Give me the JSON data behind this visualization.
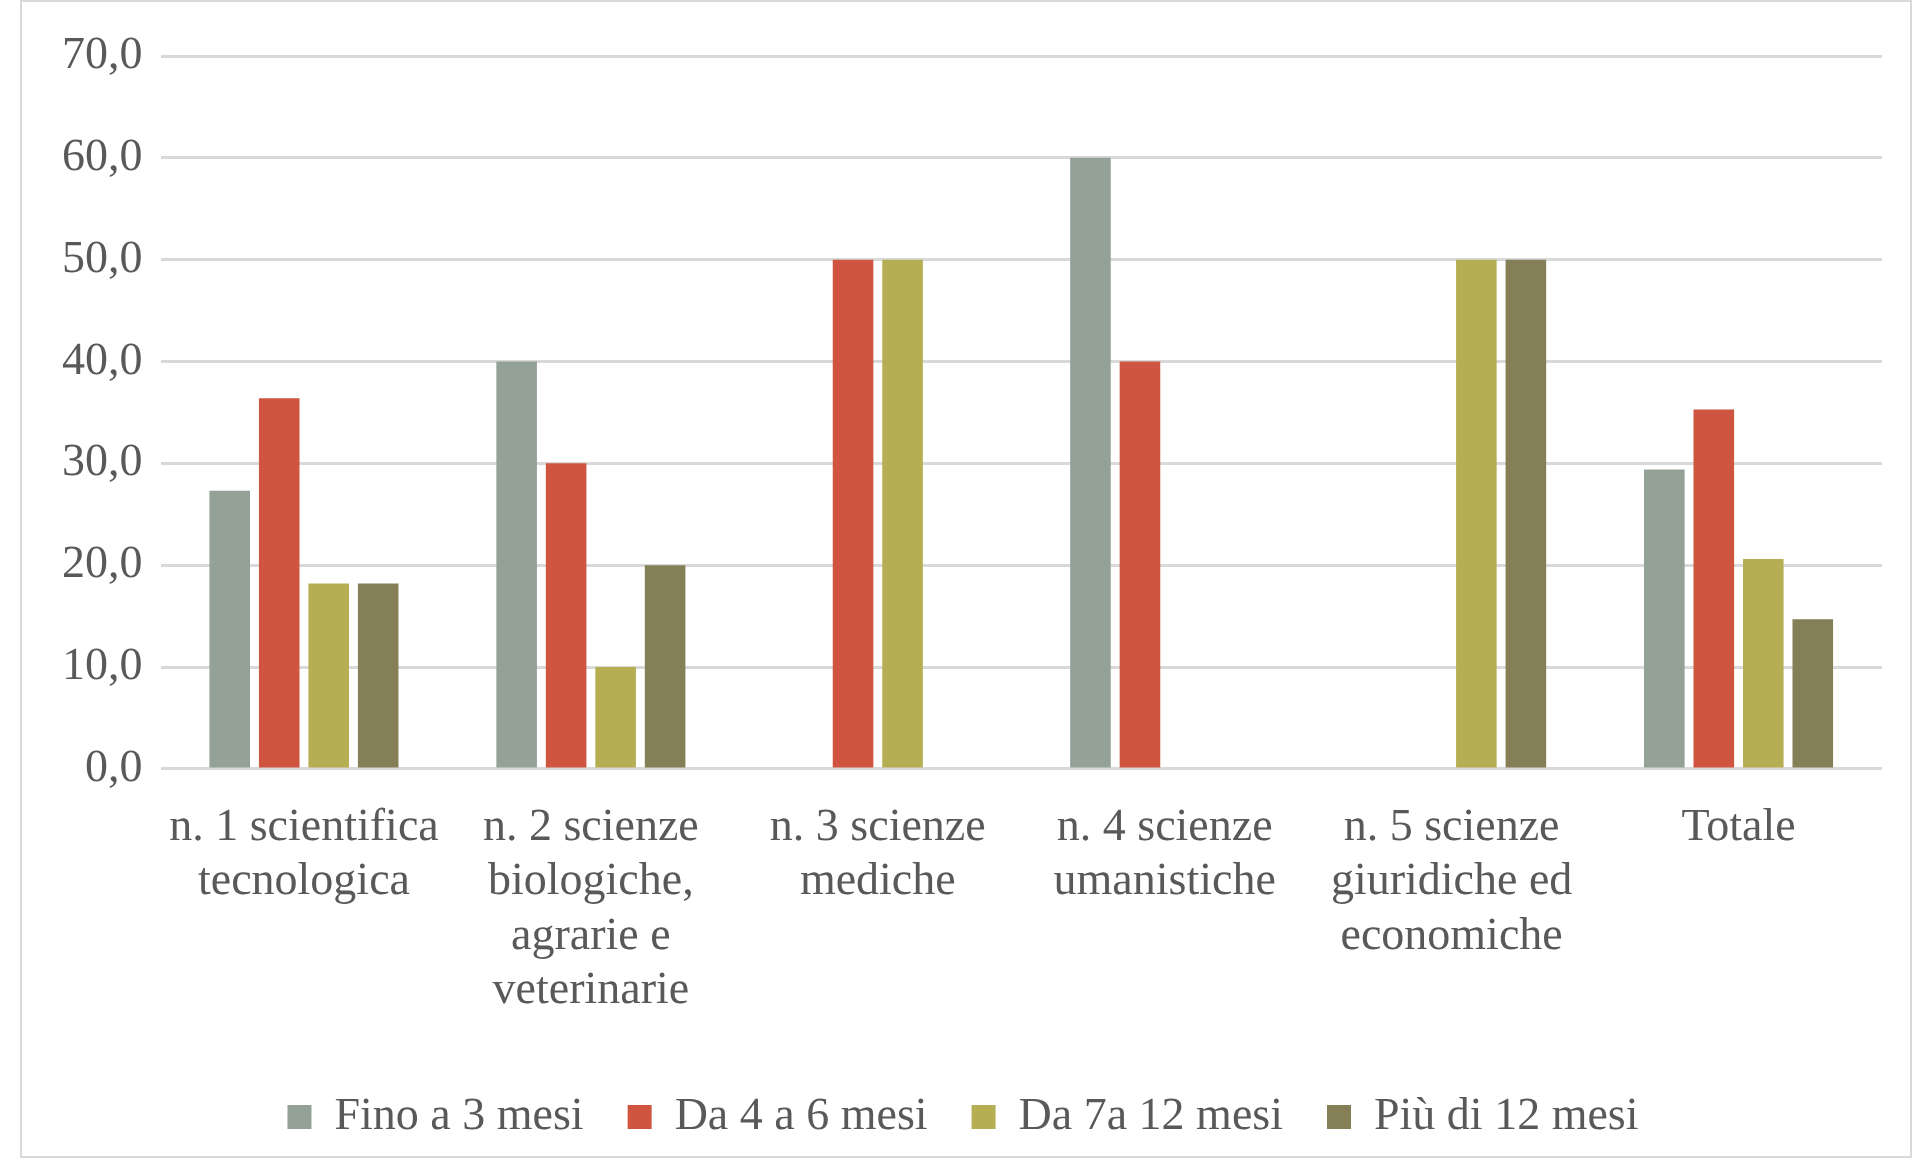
{
  "chart_data": {
    "type": "bar",
    "categories": [
      "n. 1 scientifica tecnologica",
      "n. 2 scienze biologiche, agrarie e veterinarie",
      "n. 3 scienze mediche",
      "n. 4 scienze umanistiche",
      "n. 5 scienze giuridiche ed economiche",
      "Totale"
    ],
    "series": [
      {
        "name": "Fino a 3 mesi",
        "color": "#93a197",
        "values": [
          27.3,
          40,
          null,
          60,
          null,
          29.4
        ]
      },
      {
        "name": "Da 4 a 6 mesi",
        "color": "#cf5540",
        "values": [
          36.4,
          30,
          50,
          40,
          null,
          35.3
        ]
      },
      {
        "name": "Da 7a 12 mesi",
        "color": "#b5ae53",
        "values": [
          18.2,
          10,
          50,
          null,
          50,
          20.6
        ]
      },
      {
        "name": "Più di 12 mesi",
        "color": "#857f57",
        "values": [
          18.2,
          20,
          null,
          null,
          50,
          14.7
        ]
      }
    ],
    "ylim": [
      0,
      70
    ],
    "yticks": [
      {
        "value": 0,
        "label": "0,0"
      },
      {
        "value": 10,
        "label": "10,0"
      },
      {
        "value": 20,
        "label": "20,0"
      },
      {
        "value": 30,
        "label": "30,0"
      },
      {
        "value": 40,
        "label": "40,0"
      },
      {
        "value": 50,
        "label": "50,0"
      },
      {
        "value": 60,
        "label": "60,0"
      },
      {
        "value": 70,
        "label": "70,0"
      }
    ],
    "grid": "y",
    "legend": "bottom"
  }
}
